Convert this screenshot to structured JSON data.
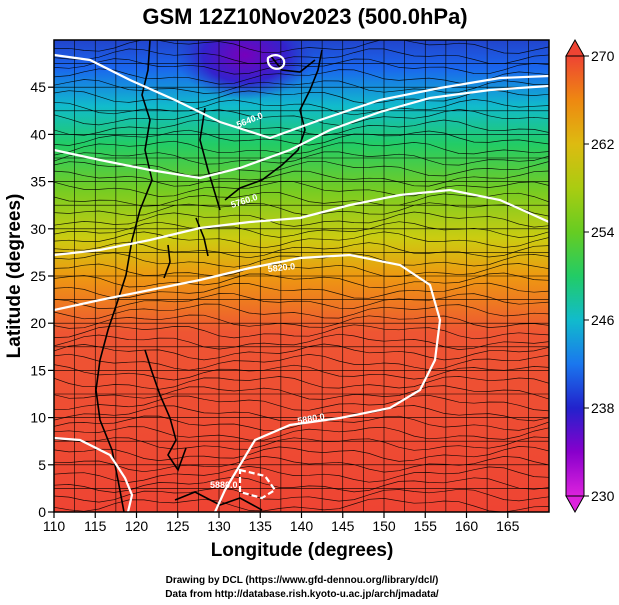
{
  "figure": {
    "title": "GSM 12Z10Nov2023 (500.0hPa)",
    "xlabel": "Longitude (degrees)",
    "ylabel": "Latitude  (degrees)",
    "credit_line1": "Drawing by DCL (https://www.gfd-dennou.org/library/dcl/)",
    "credit_line2": "Data from http://database.rish.kyoto-u.ac.jp/arch/jmadata/"
  },
  "chart_data": {
    "type": "heatmap",
    "title": "GSM 12Z10Nov2023 (500.0hPa)",
    "xlabel": "Longitude (degrees)",
    "ylabel": "Latitude  (degrees)",
    "x_range": [
      110,
      170
    ],
    "y_range": [
      0,
      50
    ],
    "x_ticks": [
      "110",
      "115",
      "120",
      "125",
      "130",
      "135",
      "140",
      "145",
      "150",
      "155",
      "160",
      "165"
    ],
    "y_ticks": [
      "0",
      "5",
      "10",
      "15",
      "20",
      "25",
      "30",
      "35",
      "40",
      "45"
    ],
    "grid": true,
    "colorbar": {
      "min": 230,
      "max": 270,
      "tick_labels": [
        "230",
        "238",
        "246",
        "254",
        "262",
        "270"
      ],
      "colors": [
        "#dd22dd",
        "#8800cc",
        "#2222cc",
        "#1a77ee",
        "#11bbcc",
        "#22cc66",
        "#66cc22",
        "#aacc11",
        "#ddbb11",
        "#ee8811",
        "#ee4433"
      ],
      "placement": "right"
    },
    "contour_labels": [
      "5820.0",
      "5880.0",
      "5880.0",
      "5760.0",
      "5640.0"
    ],
    "colors": {
      "contour": "#ffffff",
      "coast": "#000000",
      "streamline": "#000000"
    }
  }
}
